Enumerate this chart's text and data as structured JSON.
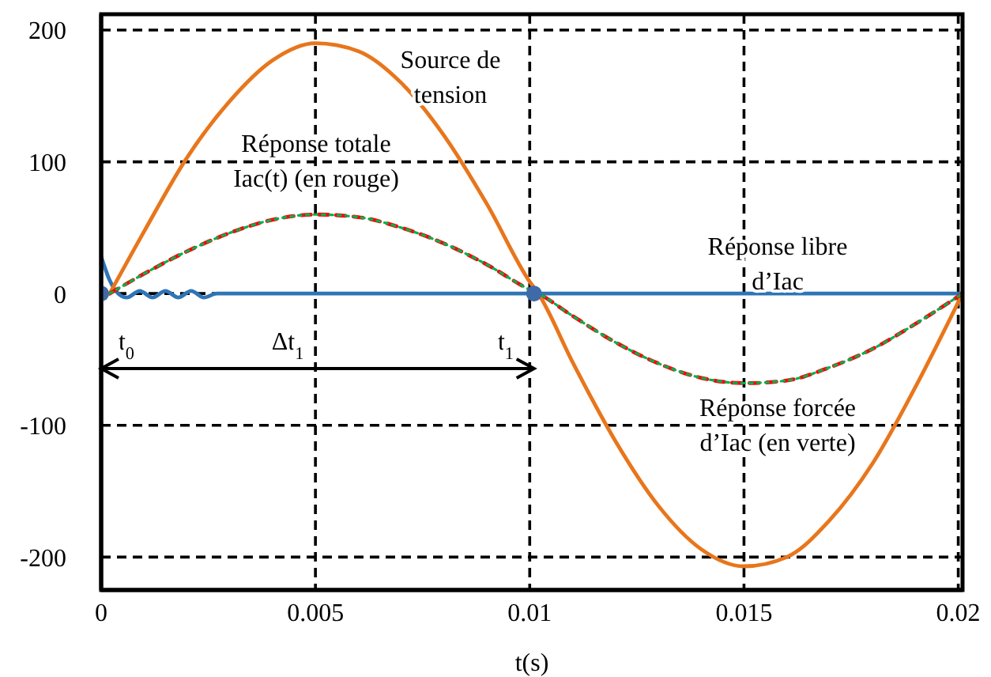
{
  "chart_data": {
    "type": "line",
    "xlabel": "t(s)",
    "xlim": [
      0,
      0.0201
    ],
    "xticks": [
      0,
      0.005,
      0.01,
      0.015,
      0.02
    ],
    "ylim": [
      -225,
      212
    ],
    "yticks": [
      -200,
      -100,
      0,
      100,
      200
    ],
    "grid": true,
    "legend": false,
    "series": [
      {
        "type": "scatter",
        "color": "#3f6aa8",
        "marker": "circle",
        "x": [
          0,
          0.0101
        ],
        "values": [
          0,
          0
        ]
      },
      {
        "color": "#2e75b6",
        "line_style": "solid",
        "x": [
          0,
          0.0002,
          0.0004,
          0.0006,
          0.0009,
          0.0012,
          0.0015,
          0.0018,
          0.0021,
          0.0024,
          0.0027,
          0.0201
        ],
        "values": [
          28,
          10,
          0,
          -3,
          2,
          -3,
          2,
          -3,
          2,
          -3,
          0,
          0
        ]
      },
      {
        "color": "#e8761c",
        "line_style": "solid",
        "x": [
          0.0002,
          0.001,
          0.002,
          0.003,
          0.004,
          0.005,
          0.006,
          0.007,
          0.008,
          0.009,
          0.01,
          0.0102,
          0.011,
          0.012,
          0.013,
          0.014,
          0.015,
          0.016,
          0.017,
          0.018,
          0.019,
          0.0201
        ],
        "values": [
          0,
          47,
          103,
          146,
          177,
          190,
          184,
          160,
          120,
          68,
          9,
          0,
          -52,
          -112,
          -161,
          -194,
          -207,
          -200,
          -172,
          -129,
          -71,
          0
        ]
      },
      {
        "color": "#ff0000",
        "line_style": "dashed",
        "x": [
          0.0002,
          0.001,
          0.002,
          0.003,
          0.004,
          0.005,
          0.006,
          0.007,
          0.008,
          0.009,
          0.01,
          0.0102,
          0.011,
          0.012,
          0.013,
          0.014,
          0.015,
          0.016,
          0.017,
          0.018,
          0.019,
          0.0201
        ],
        "values": [
          0,
          15,
          32,
          46,
          56,
          60,
          58,
          50,
          38,
          22,
          3,
          0,
          -17,
          -37,
          -53,
          -64,
          -68,
          -66,
          -56,
          -42,
          -23,
          0
        ]
      },
      {
        "color": "#00b050",
        "line_style": "dotted",
        "x": [
          0.0002,
          0.001,
          0.002,
          0.003,
          0.004,
          0.005,
          0.006,
          0.007,
          0.008,
          0.009,
          0.01,
          0.0102,
          0.011,
          0.012,
          0.013,
          0.014,
          0.015,
          0.016,
          0.017,
          0.018,
          0.019,
          0.0201
        ],
        "values": [
          0,
          15,
          32,
          46,
          56,
          60,
          58,
          50,
          38,
          22,
          3,
          0,
          -17,
          -37,
          -53,
          -64,
          -68,
          -66,
          -56,
          -42,
          -23,
          0
        ]
      }
    ],
    "annotations": [
      "Source de\ntension",
      "Réponse totale\nIac(t) (en rouge)",
      "Réponse libre\nd’Iac",
      "Réponse forcée\nd’Iac (en verte)",
      "t$_{0}$",
      "Δt$_{1}$",
      "t$_{1}$"
    ]
  }
}
